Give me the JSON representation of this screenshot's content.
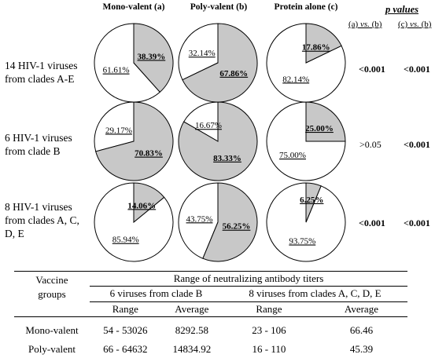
{
  "chart_data": {
    "type": "pie",
    "columns": [
      {
        "key": "a",
        "label": "Mono-valent (a)"
      },
      {
        "key": "b",
        "label": "Poly-valent (b)"
      },
      {
        "key": "c",
        "label": "Protein alone (c)"
      }
    ],
    "rows": [
      {
        "label_lines": [
          "14 HIV-1 viruses",
          "from clades A-E"
        ],
        "pies": [
          {
            "shaded": 38.39,
            "unshaded": 61.61,
            "shaded_label": "38.39%",
            "unshaded_label": "61.61%"
          },
          {
            "shaded": 67.86,
            "unshaded": 32.14,
            "shaded_label": "67.86%",
            "unshaded_label": "32.14%"
          },
          {
            "shaded": 17.86,
            "unshaded": 82.14,
            "shaded_label": "17.86%",
            "unshaded_label": "82.14%"
          }
        ],
        "p_ab": "<0.001",
        "p_ab_bold": true,
        "p_cb": "<0.001",
        "p_cb_bold": true
      },
      {
        "label_lines": [
          "6 HIV-1 viruses",
          "from clade B"
        ],
        "pies": [
          {
            "shaded": 70.83,
            "unshaded": 29.17,
            "shaded_label": "70.83%",
            "unshaded_label": "29.17%"
          },
          {
            "shaded": 83.33,
            "unshaded": 16.67,
            "shaded_label": "83.33%",
            "unshaded_label": "16.67%"
          },
          {
            "shaded": 25.0,
            "unshaded": 75.0,
            "shaded_label": "25.00%",
            "unshaded_label": "75.00%"
          }
        ],
        "p_ab": ">0.05",
        "p_ab_bold": false,
        "p_cb": "<0.001",
        "p_cb_bold": true
      },
      {
        "label_lines": [
          "8 HIV-1 viruses",
          "from clades A, C,",
          "D, E"
        ],
        "pies": [
          {
            "shaded": 14.06,
            "unshaded": 85.94,
            "shaded_label": "14.06%",
            "unshaded_label": "85.94%"
          },
          {
            "shaded": 56.25,
            "unshaded": 43.75,
            "shaded_label": "56.25%",
            "unshaded_label": "43.75%"
          },
          {
            "shaded": 6.25,
            "unshaded": 93.75,
            "shaded_label": "6.25%",
            "unshaded_label": "93.75%"
          }
        ],
        "p_ab": "<0.001",
        "p_ab_bold": true,
        "p_cb": "<0.001",
        "p_cb_bold": true
      }
    ],
    "p_values": {
      "title": "p values",
      "col1_pre": "(a) ",
      "col1_vs": "vs.",
      "col1_post": " (b)",
      "col2_pre": "(c) ",
      "col2_vs": "vs.",
      "col2_post": " (b)"
    },
    "colors": {
      "shaded": "#c8c8c8",
      "unshaded": "#ffffff",
      "stroke": "#000000"
    }
  },
  "table": {
    "header_left_lines": [
      "Vaccine",
      "groups"
    ],
    "header_span": "Range of  neutralizing antibody titers",
    "group1": "6 viruses from clade B",
    "group2": "8 viruses from clades A, C, D, E",
    "sub_range": "Range",
    "sub_average": "Average",
    "rows": [
      {
        "group": "Mono-valent",
        "g1_range": "54 - 53026",
        "g1_avg": "8292.58",
        "g2_range": "23 - 106",
        "g2_avg": "66.46"
      },
      {
        "group": "Poly-valent",
        "g1_range": "66 - 64632",
        "g1_avg": "14834.92",
        "g2_range": "16 - 110",
        "g2_avg": "45.39"
      }
    ]
  }
}
